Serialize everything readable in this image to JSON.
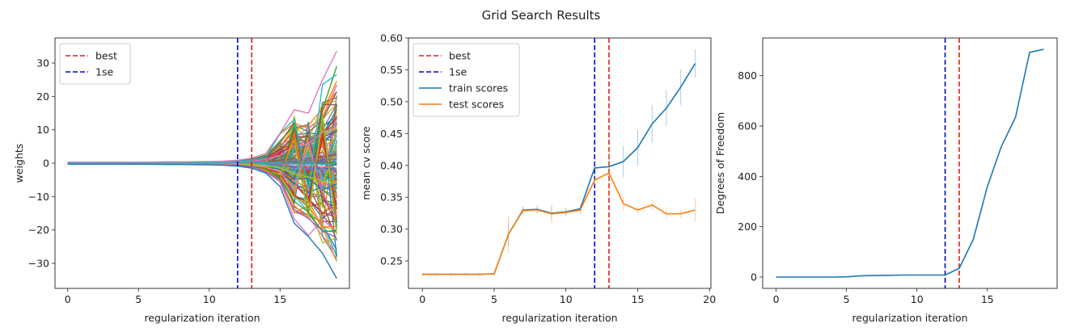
{
  "title": "Grid Search Results",
  "colors": {
    "best": "#e41a1c",
    "onese": "#0000dd",
    "train": "#1f77b4",
    "test": "#ff7f0e",
    "palette": [
      "#1f77b4",
      "#ff7f0e",
      "#2ca02c",
      "#d62728",
      "#9467bd",
      "#8c564b",
      "#e377c2",
      "#7f7f7f",
      "#bcbd22",
      "#17becf"
    ]
  },
  "chart_data": [
    {
      "type": "line",
      "xlabel": "regularization iteration",
      "ylabel": "weights",
      "xlim": [
        -0.9,
        19.9
      ],
      "ylim": [
        -37.5,
        37.5
      ],
      "xticks": [
        0,
        5,
        10,
        15
      ],
      "yticks": [
        -30,
        -20,
        -10,
        0,
        10,
        20,
        30
      ],
      "best": 13,
      "onese": 12,
      "legend": [
        "best",
        "1se"
      ],
      "legend_loc": "upper-left",
      "weights_path": {
        "x": [
          0,
          1,
          2,
          3,
          4,
          5,
          6,
          7,
          8,
          9,
          10,
          11,
          12,
          13,
          14,
          15,
          16,
          17,
          18,
          19
        ],
        "max": [
          0.3,
          0.3,
          0.3,
          0.3,
          0.3,
          0.3,
          0.35,
          0.4,
          0.4,
          0.45,
          0.5,
          0.6,
          0.9,
          1.5,
          3,
          9,
          16,
          15,
          25,
          33.5
        ],
        "min": [
          -0.3,
          -0.3,
          -0.3,
          -0.3,
          -0.3,
          -0.3,
          -0.35,
          -0.4,
          -0.4,
          -0.45,
          -0.5,
          -0.6,
          -0.9,
          -1.5,
          -3,
          -7,
          -18,
          -22,
          -27,
          -34.5
        ]
      }
    },
    {
      "type": "line",
      "xlabel": "regularization iteration",
      "ylabel": "mean cv score",
      "xlim": [
        -0.97,
        20.1
      ],
      "ylim": [
        0.207,
        0.6
      ],
      "xticks": [
        0,
        5,
        10,
        15,
        20
      ],
      "yticks": [
        0.25,
        0.3,
        0.35,
        0.4,
        0.45,
        0.5,
        0.55,
        0.6
      ],
      "best": 13,
      "onese": 12,
      "legend": [
        "best",
        "1se",
        "train scores",
        "test scores"
      ],
      "legend_loc": "upper-left",
      "x": [
        0,
        1,
        2,
        3,
        4,
        5,
        6,
        7,
        8,
        9,
        10,
        11,
        12,
        13,
        14,
        15,
        16,
        17,
        18,
        19
      ],
      "series": [
        {
          "name": "train scores",
          "values": [
            0.229,
            0.229,
            0.229,
            0.229,
            0.229,
            0.23,
            0.292,
            0.33,
            0.331,
            0.325,
            0.327,
            0.332,
            0.396,
            0.398,
            0.406,
            0.428,
            0.465,
            0.49,
            0.523,
            0.56
          ],
          "err": [
            0.002,
            0.002,
            0.002,
            0.002,
            0.002,
            0.002,
            0.018,
            0.006,
            0.006,
            0.01,
            0.006,
            0.006,
            0.013,
            0.022,
            0.025,
            0.028,
            0.03,
            0.028,
            0.028,
            0.022
          ]
        },
        {
          "name": "test scores",
          "values": [
            0.229,
            0.229,
            0.229,
            0.229,
            0.229,
            0.23,
            0.292,
            0.329,
            0.33,
            0.324,
            0.326,
            0.33,
            0.377,
            0.388,
            0.34,
            0.33,
            0.338,
            0.324,
            0.324,
            0.33
          ],
          "err": [
            0.002,
            0.002,
            0.002,
            0.002,
            0.002,
            0.002,
            0.03,
            0.006,
            0.006,
            0.015,
            0.006,
            0.006,
            0.01,
            0.04,
            0.012,
            0.006,
            0.008,
            0.008,
            0.006,
            0.018
          ]
        }
      ]
    },
    {
      "type": "line",
      "xlabel": "regularization iteration",
      "ylabel": "Degrees of Freedom",
      "xlim": [
        -0.95,
        19.95
      ],
      "ylim": [
        -45,
        950
      ],
      "xticks": [
        0,
        5,
        10,
        15
      ],
      "yticks": [
        0,
        200,
        400,
        600,
        800
      ],
      "best": 13,
      "onese": 12,
      "x": [
        0,
        1,
        2,
        3,
        4,
        5,
        6,
        7,
        8,
        9,
        10,
        11,
        12,
        13,
        14,
        15,
        16,
        17,
        18,
        19
      ],
      "series": [
        {
          "name": "",
          "values": [
            0,
            0,
            0,
            0,
            0,
            1,
            5,
            6,
            7,
            8,
            8,
            8,
            8,
            35,
            150,
            360,
            520,
            635,
            893,
            905
          ]
        }
      ]
    }
  ]
}
